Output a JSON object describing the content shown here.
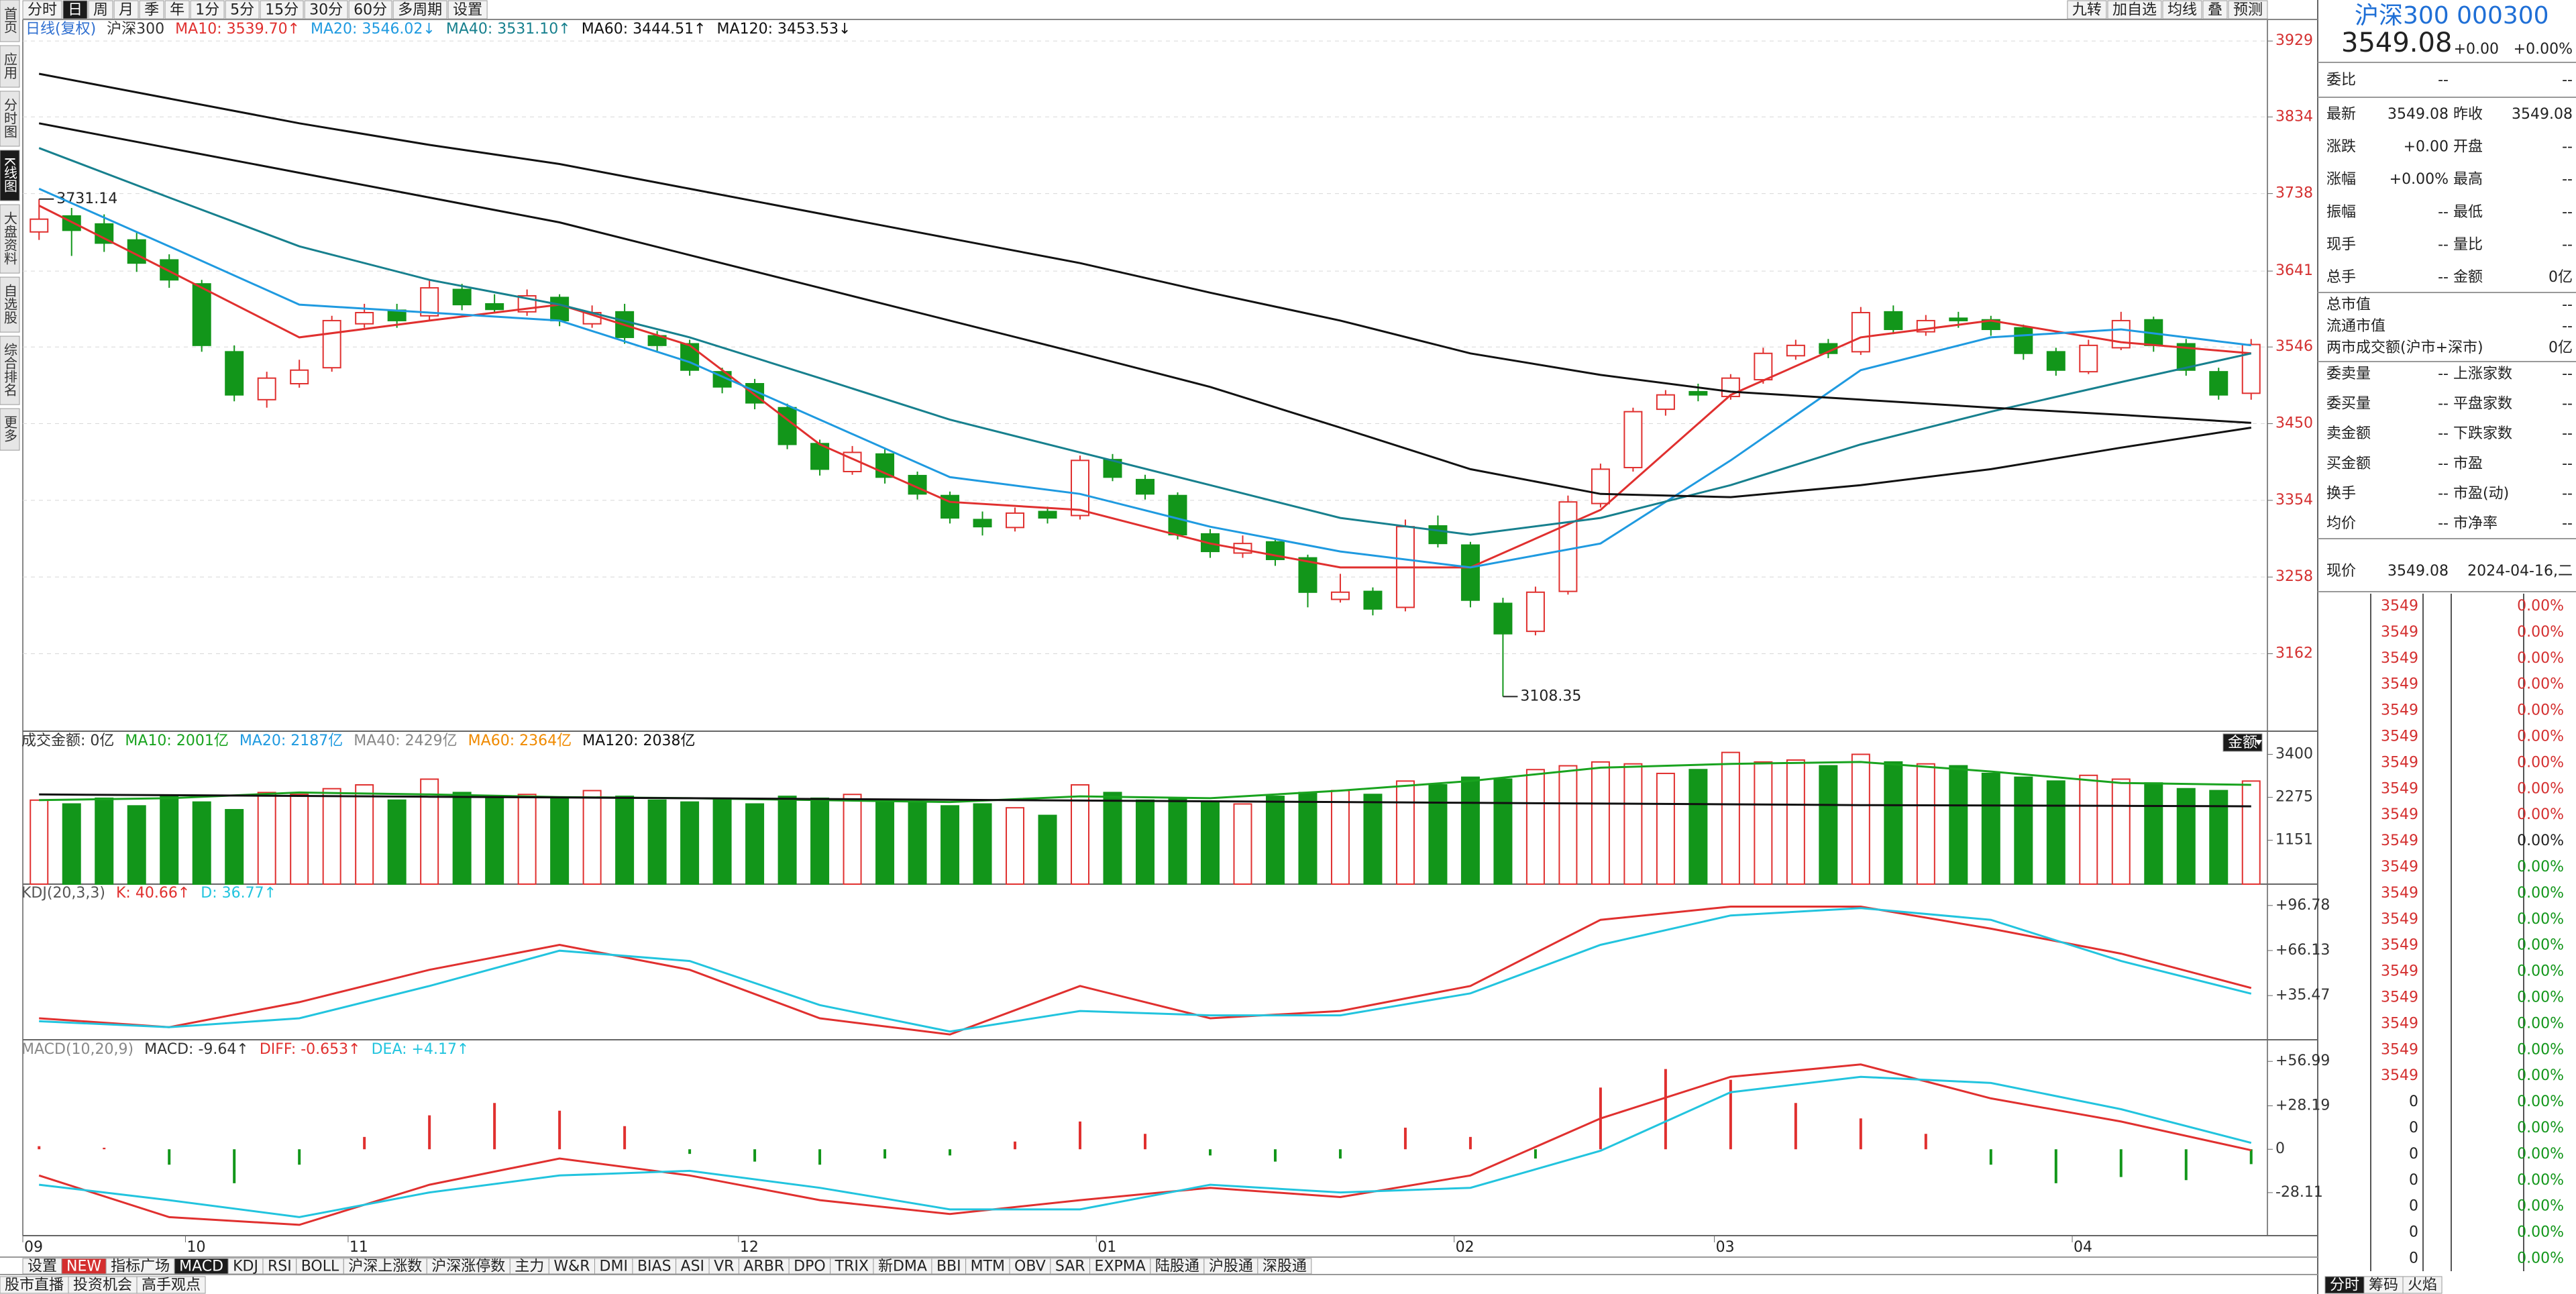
{
  "toolbar": {
    "left": [
      "分时",
      "日",
      "周",
      "月",
      "季",
      "年",
      "1分",
      "5分",
      "15分",
      "30分",
      "60分",
      "多周期",
      "设置"
    ],
    "selected": 1,
    "right": [
      "九转",
      "加自选",
      "均线",
      "叠",
      "预测"
    ]
  },
  "sidebar": {
    "items": [
      "首页",
      "应用",
      "分时图",
      "K线图",
      "大盘资料",
      "自选股",
      "综合排名",
      "更多"
    ],
    "selected": 3
  },
  "sample_x": [
    0,
    4,
    8,
    12,
    16,
    20,
    24,
    28,
    32,
    36,
    40,
    44,
    48,
    52,
    56,
    60,
    64,
    68
  ],
  "price_chart": {
    "type": "candlestick",
    "legend_prefix": [
      {
        "text": "日线(复权)",
        "color": "#2f6fd0"
      },
      {
        "text": "沪深300",
        "color": "#333333"
      }
    ],
    "ylim": [
      3065,
      3956
    ],
    "yticks": [
      3929,
      3834,
      3738,
      3641,
      3546,
      3450,
      3354,
      3258,
      3162
    ],
    "grid": true,
    "mark_extremes": true,
    "up_color": "#e0302f",
    "down_color": "#12961a",
    "candles": [
      [
        3690,
        3731.14,
        3680,
        3706
      ],
      [
        3710,
        3720,
        3660,
        3692
      ],
      [
        3700,
        3712,
        3665,
        3676
      ],
      [
        3680,
        3690,
        3640,
        3651
      ],
      [
        3655,
        3662,
        3620,
        3630
      ],
      [
        3625,
        3630,
        3540,
        3548
      ],
      [
        3540,
        3548,
        3478,
        3486
      ],
      [
        3480,
        3515,
        3470,
        3507
      ],
      [
        3500,
        3530,
        3495,
        3517
      ],
      [
        3520,
        3585,
        3515,
        3579
      ],
      [
        3575,
        3600,
        3570,
        3589
      ],
      [
        3592,
        3600,
        3570,
        3579
      ],
      [
        3585,
        3630,
        3580,
        3620
      ],
      [
        3618,
        3625,
        3592,
        3599
      ],
      [
        3600,
        3612,
        3588,
        3593
      ],
      [
        3590,
        3618,
        3585,
        3610
      ],
      [
        3608,
        3612,
        3572,
        3579
      ],
      [
        3575,
        3598,
        3570,
        3589
      ],
      [
        3590,
        3600,
        3550,
        3558
      ],
      [
        3560,
        3566,
        3540,
        3548
      ],
      [
        3550,
        3555,
        3510,
        3517
      ],
      [
        3515,
        3520,
        3488,
        3496
      ],
      [
        3500,
        3506,
        3468,
        3476
      ],
      [
        3470,
        3475,
        3418,
        3424
      ],
      [
        3425,
        3430,
        3385,
        3393
      ],
      [
        3390,
        3422,
        3386,
        3414
      ],
      [
        3412,
        3418,
        3375,
        3383
      ],
      [
        3385,
        3390,
        3355,
        3362
      ],
      [
        3360,
        3365,
        3325,
        3332
      ],
      [
        3330,
        3340,
        3310,
        3321
      ],
      [
        3320,
        3345,
        3315,
        3338
      ],
      [
        3340,
        3346,
        3325,
        3332
      ],
      [
        3335,
        3410,
        3330,
        3404
      ],
      [
        3405,
        3412,
        3378,
        3383
      ],
      [
        3380,
        3386,
        3355,
        3362
      ],
      [
        3360,
        3364,
        3305,
        3311
      ],
      [
        3312,
        3318,
        3282,
        3290
      ],
      [
        3288,
        3310,
        3282,
        3300
      ],
      [
        3302,
        3306,
        3272,
        3280
      ],
      [
        3282,
        3286,
        3220,
        3239
      ],
      [
        3230,
        3262,
        3226,
        3239
      ],
      [
        3240,
        3245,
        3210,
        3218
      ],
      [
        3220,
        3330,
        3215,
        3321
      ],
      [
        3322,
        3335,
        3295,
        3300
      ],
      [
        3298,
        3302,
        3220,
        3229
      ],
      [
        3225,
        3232,
        3108.35,
        3187
      ],
      [
        3190,
        3246,
        3185,
        3239
      ],
      [
        3240,
        3360,
        3236,
        3352
      ],
      [
        3350,
        3400,
        3345,
        3393
      ],
      [
        3395,
        3470,
        3390,
        3465
      ],
      [
        3468,
        3492,
        3460,
        3486
      ],
      [
        3490,
        3500,
        3478,
        3486
      ],
      [
        3484,
        3512,
        3480,
        3507
      ],
      [
        3505,
        3545,
        3500,
        3538
      ],
      [
        3535,
        3555,
        3530,
        3548
      ],
      [
        3550,
        3556,
        3532,
        3538
      ],
      [
        3540,
        3596,
        3536,
        3589
      ],
      [
        3590,
        3598,
        3562,
        3568
      ],
      [
        3565,
        3586,
        3560,
        3579
      ],
      [
        3582,
        3590,
        3570,
        3579
      ],
      [
        3580,
        3585,
        3560,
        3568
      ],
      [
        3570,
        3574,
        3530,
        3538
      ],
      [
        3540,
        3545,
        3510,
        3517
      ],
      [
        3515,
        3555,
        3512,
        3548
      ],
      [
        3545,
        3590,
        3542,
        3579
      ],
      [
        3580,
        3584,
        3540,
        3548
      ],
      [
        3550,
        3556,
        3510,
        3517
      ],
      [
        3515,
        3520,
        3480,
        3486
      ],
      [
        3488,
        3556,
        3480,
        3549.08
      ]
    ],
    "ma_lines": [
      {
        "name": "MA10: 3539.70↑",
        "color": "#e0302f",
        "values": [
          3723,
          3641,
          3558,
          3579,
          3599,
          3548,
          3424,
          3352,
          3342,
          3300,
          3270,
          3270,
          3342,
          3486,
          3558,
          3579,
          3552,
          3538
        ]
      },
      {
        "name": "MA20: 3546.02↓",
        "color": "#1f9ae0",
        "values": [
          3744,
          3672,
          3599,
          3589,
          3579,
          3527,
          3455,
          3383,
          3362,
          3321,
          3290,
          3270,
          3300,
          3404,
          3517,
          3558,
          3568,
          3548
        ]
      },
      {
        "name": "MA40: 3531.10↑",
        "color": "#17808e",
        "values": [
          3795,
          3733,
          3672,
          3630,
          3599,
          3558,
          3507,
          3455,
          3414,
          3373,
          3332,
          3311,
          3332,
          3373,
          3424,
          3465,
          3502,
          3538
        ]
      },
      {
        "name": "MA60: 3444.51↑",
        "color": "#111111",
        "values": [
          3826,
          3795,
          3764,
          3733,
          3702,
          3661,
          3620,
          3579,
          3538,
          3496,
          3445,
          3393,
          3362,
          3358,
          3373,
          3393,
          3420,
          3445
        ]
      },
      {
        "name": "MA120: 3453.53↓",
        "color": "#111111",
        "values": [
          3888,
          3857,
          3826,
          3799,
          3775,
          3744,
          3713,
          3682,
          3651,
          3614,
          3579,
          3538,
          3511,
          3490,
          3480,
          3470,
          3461,
          3451
        ]
      }
    ]
  },
  "volume_chart": {
    "type": "bar",
    "legend": [
      {
        "text": "成交金额: 0亿",
        "color": "#333333"
      },
      {
        "text": "MA10: 2001亿",
        "color": "#19a31f"
      },
      {
        "text": "MA20: 2187亿",
        "color": "#1f9ae0"
      },
      {
        "text": "MA40: 2429亿",
        "color": "#888888"
      },
      {
        "text": "MA60: 2364亿",
        "color": "#f08a00"
      },
      {
        "text": "MA120: 2038亿",
        "color": "#111111"
      }
    ],
    "button": "金额",
    "ylim": [
      0,
      4006
    ],
    "yticks": [
      3400,
      2275,
      1151
    ],
    "values": [
      2200,
      2100,
      2250,
      2050,
      2300,
      2150,
      1950,
      2400,
      2350,
      2500,
      2600,
      2200,
      2750,
      2400,
      2300,
      2350,
      2250,
      2450,
      2300,
      2200,
      2150,
      2250,
      2100,
      2300,
      2250,
      2350,
      2200,
      2150,
      2050,
      2100,
      2000,
      1800,
      2600,
      2400,
      2200,
      2250,
      2150,
      2100,
      2300,
      2400,
      2450,
      2350,
      2700,
      2600,
      2800,
      2750,
      3000,
      3100,
      3200,
      3150,
      2900,
      3000,
      3450,
      3200,
      3250,
      3100,
      3400,
      3200,
      3150,
      3100,
      2900,
      2800,
      2700,
      2850,
      2750,
      2650,
      2500,
      2450,
      2700
    ],
    "ma_lines": [
      {
        "color": "#19a31f",
        "values": [
          2200,
          2250,
          2400,
          2350,
          2280,
          2250,
          2200,
          2150,
          2300,
          2250,
          2450,
          2700,
          3050,
          3150,
          3200,
          2950,
          2650,
          2600
        ]
      },
      {
        "color": "#111111",
        "values": [
          2350,
          2330,
          2310,
          2290,
          2270,
          2250,
          2230,
          2210,
          2190,
          2170,
          2150,
          2130,
          2110,
          2090,
          2070,
          2060,
          2050,
          2038
        ]
      }
    ]
  },
  "kdj_chart": {
    "type": "line",
    "title": "KDJ(20,3,3)",
    "ylim": [
      5.4,
      111.3
    ],
    "yticks": [
      {
        "value": 96.78,
        "label": "+96.78"
      },
      {
        "value": 66.13,
        "label": "+66.13"
      },
      {
        "value": 35.47,
        "label": "+35.47"
      }
    ],
    "series": [
      {
        "name": "K: 40.66↑",
        "color": "#e0302f",
        "values": [
          20,
          14,
          31,
          53,
          70,
          53,
          20,
          9,
          42,
          20,
          25,
          42,
          87,
          96,
          96,
          81,
          64,
          40.66
        ]
      },
      {
        "name": "D: 36.77↑",
        "color": "#22c4de",
        "values": [
          18,
          14,
          20,
          42,
          66,
          59,
          29,
          11,
          25,
          22,
          22,
          37,
          70,
          90,
          95,
          87,
          59,
          36.77
        ]
      }
    ]
  },
  "macd_chart": {
    "type": "line",
    "title": "MACD(10,20,9)",
    "hist_name": "MACD: -9.64↑",
    "ylim": [
      -56,
      71
    ],
    "yticks": [
      {
        "value": 56.99,
        "label": "+56.99"
      },
      {
        "value": 28.19,
        "label": "+28.19"
      },
      0,
      -28.11
    ],
    "series": [
      {
        "name": "DIFF: -0.653↑",
        "color": "#e0302f",
        "values": [
          -17,
          -44,
          -49,
          -23,
          -6,
          -17,
          -33,
          -42,
          -33,
          -25,
          -31,
          -17,
          20,
          47,
          55,
          33,
          18,
          -0.653
        ]
      },
      {
        "name": "DEA: +4.17↑",
        "color": "#22c4de",
        "values": [
          -23,
          -33,
          -44,
          -28,
          -17,
          -14,
          -25,
          -39,
          -39,
          -23,
          -28,
          -25,
          -1,
          37,
          47,
          43,
          26,
          4.17
        ]
      }
    ],
    "hist_x": [
      0,
      2,
      4,
      6,
      8,
      10,
      12,
      14,
      16,
      18,
      20,
      22,
      24,
      26,
      28,
      30,
      32,
      34,
      36,
      38,
      40,
      42,
      44,
      46,
      48,
      50,
      52,
      54,
      56,
      58,
      60,
      62,
      64,
      66,
      68
    ],
    "hist": [
      2,
      1,
      -10,
      -22,
      -10,
      8,
      22,
      30,
      25,
      15,
      -3,
      -8,
      -10,
      -6,
      -4,
      5,
      18,
      10,
      -4,
      -8,
      -6,
      14,
      8,
      -6,
      40,
      52,
      45,
      30,
      20,
      10,
      -10,
      -22,
      -18,
      -20,
      -9.64
    ]
  },
  "x_axis": {
    "ticks": [
      {
        "value": 0,
        "label": "09"
      },
      {
        "value": 5,
        "label": "10"
      },
      {
        "value": 10,
        "label": "11"
      },
      {
        "value": 22,
        "label": "12"
      },
      {
        "value": 33,
        "label": "01"
      },
      {
        "value": 44,
        "label": "02"
      },
      {
        "value": 52,
        "label": "03"
      },
      {
        "value": 63,
        "label": "04"
      }
    ]
  },
  "indicator_tabs": {
    "items": [
      "设置",
      "NEW",
      "指标广场",
      "MACD",
      "KDJ",
      "RSI",
      "BOLL",
      "沪深上涨数",
      "沪深涨停数",
      "主力",
      "W&R",
      "DMI",
      "BIAS",
      "ASI",
      "VR",
      "ARBR",
      "DPO",
      "TRIX",
      "新DMA",
      "BBI",
      "MTM",
      "OBV",
      "SAR",
      "EXPMA",
      "陆股通",
      "沪股通",
      "深股通"
    ],
    "selected": 3,
    "badge": 1
  },
  "bottom_tabs": [
    "股市直播",
    "投资机会",
    "高手观点"
  ],
  "quote_panel": {
    "title": "沪深300 000300",
    "price": 3549.08,
    "change": "+0.00",
    "change_pct": "+0.00%",
    "bid_ratio": [
      "委比",
      "--",
      "--"
    ],
    "rows": [
      [
        "最新",
        3549.08,
        "昨收",
        3549.08
      ],
      [
        "涨跌",
        "+0.00",
        "开盘",
        "--"
      ],
      [
        "涨幅",
        "+0.00%",
        "最高",
        "--"
      ],
      [
        "振幅",
        "--",
        "最低",
        "--"
      ],
      [
        "现手",
        "--",
        "量比",
        "--"
      ],
      [
        "总手",
        "--",
        "金额",
        "0亿"
      ]
    ],
    "wide_rows": [
      [
        "总市值",
        "--"
      ],
      [
        "流通市值",
        "--"
      ],
      [
        "两市成交额(沪市+深市)",
        "0亿"
      ]
    ],
    "rows2": [
      [
        "委卖量",
        "--",
        "上涨家数",
        "--"
      ],
      [
        "委买量",
        "--",
        "平盘家数",
        "--"
      ],
      [
        "卖金额",
        "--",
        "下跌家数",
        "--"
      ],
      [
        "买金额",
        "--",
        "市盈",
        "--"
      ],
      [
        "换手",
        "--",
        "市盈(动)",
        "--"
      ],
      [
        "均价",
        "--",
        "市净率",
        "--"
      ]
    ],
    "now": [
      "现价",
      3549.08,
      "2024-04-16,二"
    ],
    "tick_rows": [
      {
        "price": 3549,
        "pct": "0.00%",
        "color": "#d42f2f"
      },
      {
        "price": 3549,
        "pct": "0.00%",
        "color": "#d42f2f"
      },
      {
        "price": 3549,
        "pct": "0.00%",
        "color": "#d42f2f"
      },
      {
        "price": 3549,
        "pct": "0.00%",
        "color": "#d42f2f"
      },
      {
        "price": 3549,
        "pct": "0.00%",
        "color": "#d42f2f"
      },
      {
        "price": 3549,
        "pct": "0.00%",
        "color": "#d42f2f"
      },
      {
        "price": 3549,
        "pct": "0.00%",
        "color": "#d42f2f"
      },
      {
        "price": 3549,
        "pct": "0.00%",
        "color": "#d42f2f"
      },
      {
        "price": 3549,
        "pct": "0.00%",
        "color": "#d42f2f"
      },
      {
        "price": 3549,
        "pct": "0.00%",
        "color": "#222222"
      },
      {
        "price": 3549,
        "pct": "0.00%",
        "color": "#12961a"
      },
      {
        "price": 3549,
        "pct": "0.00%",
        "color": "#12961a"
      },
      {
        "price": 3549,
        "pct": "0.00%",
        "color": "#12961a"
      },
      {
        "price": 3549,
        "pct": "0.00%",
        "color": "#12961a"
      },
      {
        "price": 3549,
        "pct": "0.00%",
        "color": "#12961a"
      },
      {
        "price": 3549,
        "pct": "0.00%",
        "color": "#12961a"
      },
      {
        "price": 3549,
        "pct": "0.00%",
        "color": "#12961a"
      },
      {
        "price": 3549,
        "pct": "0.00%",
        "color": "#12961a"
      },
      {
        "price": 3549,
        "pct": "0.00%",
        "color": "#12961a"
      },
      {
        "price": 0,
        "pct": "0.00%",
        "color": "#12961a"
      },
      {
        "price": 0,
        "pct": "0.00%",
        "color": "#12961a"
      },
      {
        "price": 0,
        "pct": "0.00%",
        "color": "#12961a"
      },
      {
        "price": 0,
        "pct": "0.00%",
        "color": "#12961a"
      },
      {
        "price": 0,
        "pct": "0.00%",
        "color": "#12961a"
      },
      {
        "price": 0,
        "pct": "0.00%",
        "color": "#12961a"
      },
      {
        "price": 0,
        "pct": "0.00%",
        "color": "#12961a"
      }
    ],
    "tabs": [
      "分时",
      "筹码",
      "火焰"
    ],
    "selected_tab": 0
  }
}
